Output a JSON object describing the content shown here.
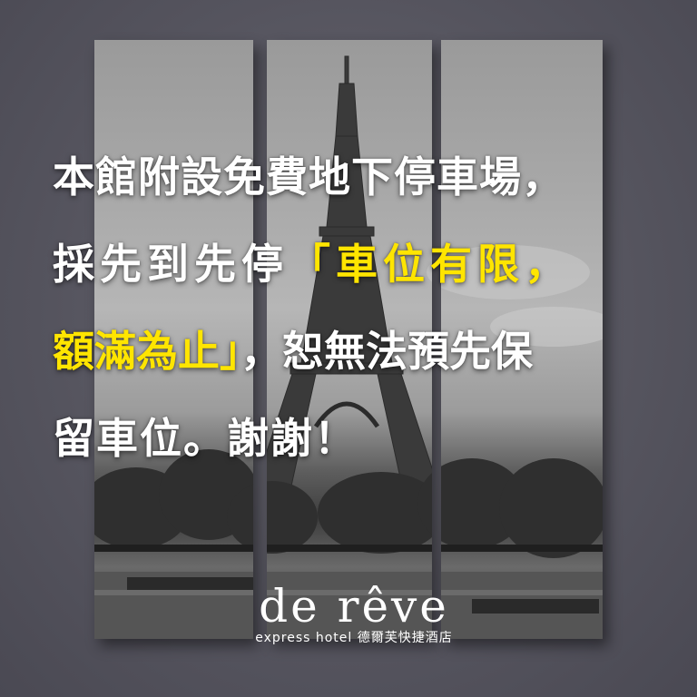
{
  "notice": {
    "line1": "本館附設免費地下停車場，",
    "line2_white": "採先到先停",
    "line2_yellow": "「車位有限，",
    "line3_yellow": "額滿為止」",
    "line3_white": "，恕無法預先保",
    "line4": "留車位。謝謝！"
  },
  "brand": {
    "name": "de rêve",
    "subtitle": "express hotel 德爾芙快捷酒店"
  },
  "colors": {
    "wall": "#5a5963",
    "highlight": "#ffe500",
    "text": "#ffffff"
  }
}
